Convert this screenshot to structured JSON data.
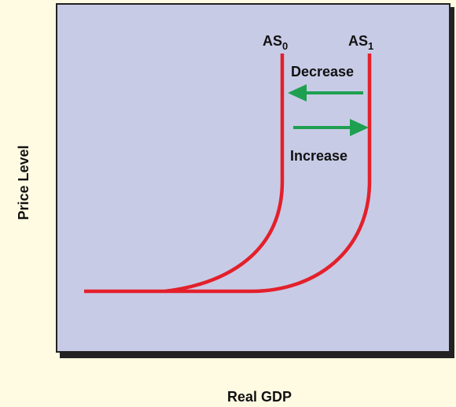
{
  "axes": {
    "y_label": "Price Level",
    "x_label": "Real GDP"
  },
  "curves": [
    {
      "base": "AS",
      "sub": "0"
    },
    {
      "base": "AS",
      "sub": "1"
    }
  ],
  "arrows": [
    {
      "label": "Decrease"
    },
    {
      "label": "Increase"
    }
  ]
}
